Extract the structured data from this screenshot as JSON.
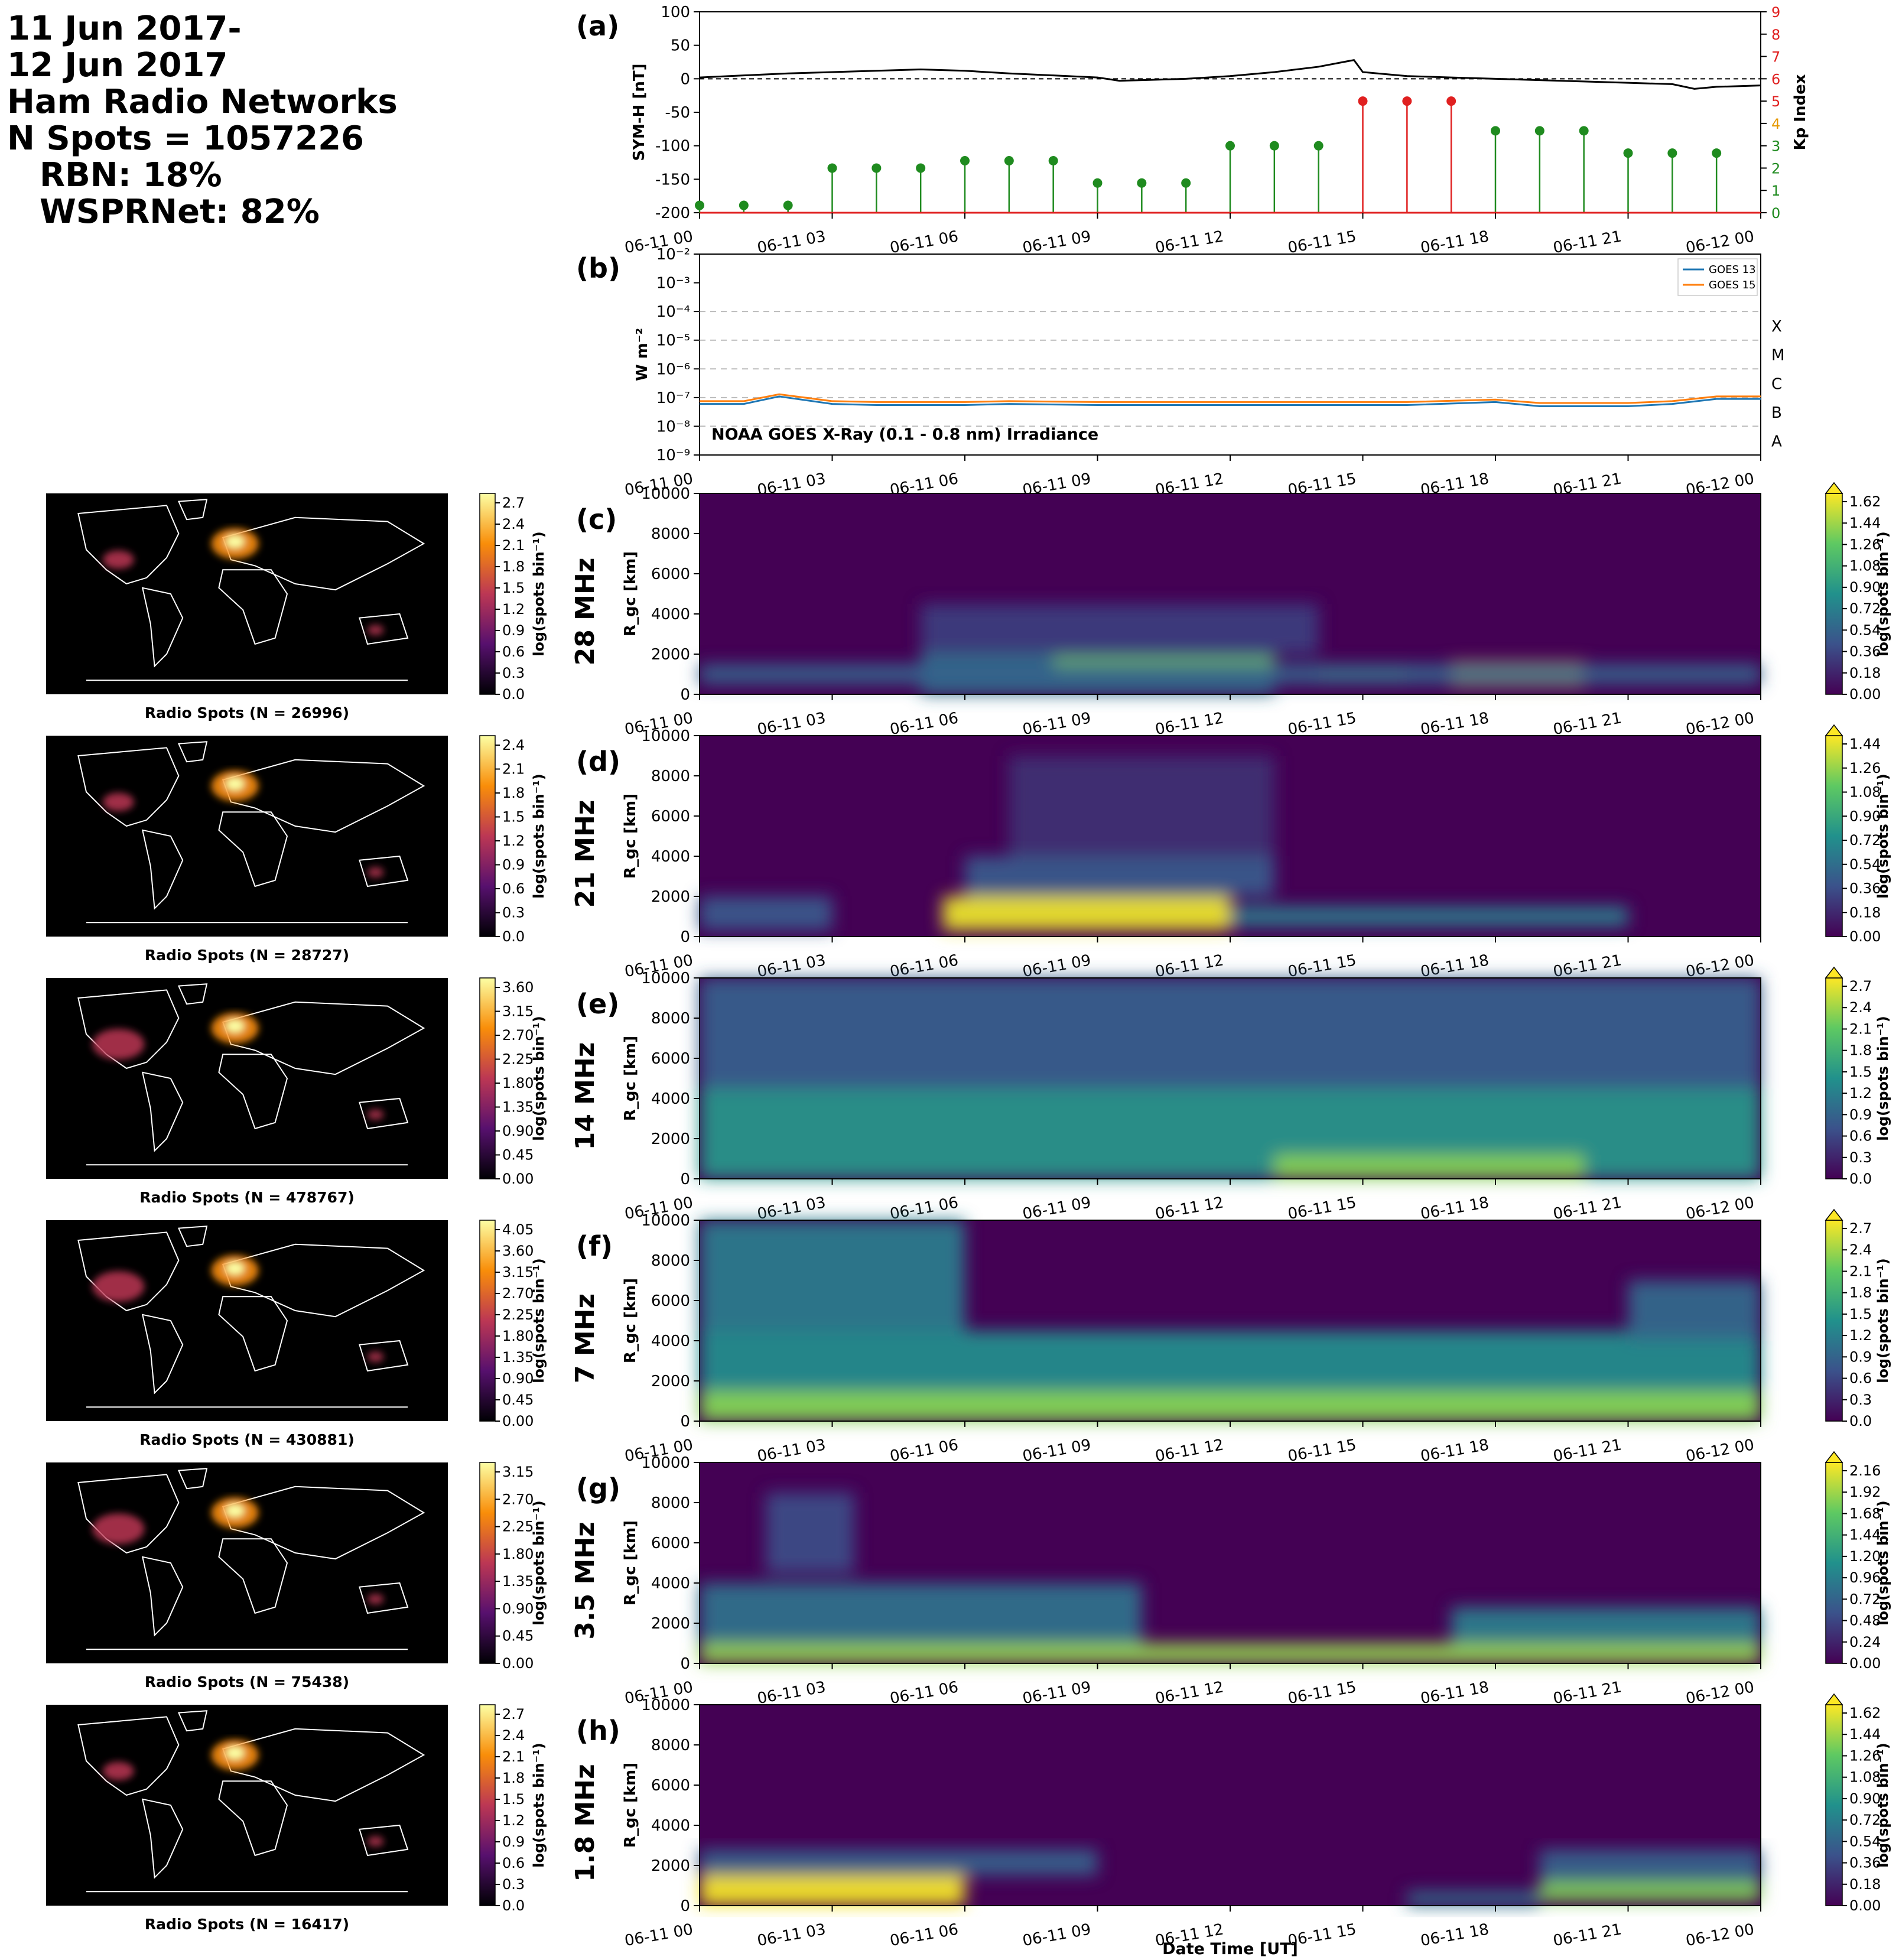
{
  "summary": {
    "date_line1": "11 Jun 2017-",
    "date_line2": "12 Jun 2017",
    "networks_label": "Ham Radio Networks",
    "n_spots": "N Spots = 1057226",
    "rbn": "RBN: 18%",
    "wsprnet": "WSPRNet: 82%"
  },
  "time_ticks": [
    "06-11 00",
    "06-11 03",
    "06-11 06",
    "06-11 09",
    "06-11 12",
    "06-11 15",
    "06-11 18",
    "06-11 21",
    "06-12 00"
  ],
  "xlabel": "Date Time [UT]",
  "colors": {
    "symh": "#000000",
    "kp_green": "#1f8b1f",
    "kp_red": "#e02020",
    "goes13": "#1f77b4",
    "goes15": "#ff7f0e"
  },
  "chart_data": [
    {
      "panel_label": "(a)",
      "type": "line",
      "ylabel": "SYM-H [nT]",
      "ylim": [
        -200,
        100
      ],
      "yticks": [
        "100",
        "50",
        "0",
        "-50",
        "-100",
        "-150",
        "-200"
      ],
      "symh_series": {
        "x_hours": [
          0,
          1,
          2,
          3,
          4,
          5,
          6,
          7,
          8,
          9,
          9.5,
          10,
          11,
          12,
          13,
          14,
          14.8,
          15,
          16,
          17,
          18,
          19,
          20,
          21,
          22,
          22.5,
          23,
          24
        ],
        "values": [
          2,
          5,
          8,
          10,
          12,
          14,
          12,
          8,
          5,
          2,
          -3,
          -2,
          0,
          4,
          10,
          18,
          28,
          10,
          4,
          2,
          0,
          -2,
          -4,
          -6,
          -8,
          -15,
          -12,
          -10
        ]
      },
      "kp": {
        "ylabel": "Kp Index",
        "ylim": [
          0,
          9
        ],
        "yticks": [
          "0",
          "1",
          "2",
          "3",
          "4",
          "5",
          "6",
          "7",
          "8",
          "9"
        ],
        "x_hours": [
          0,
          1,
          2,
          3,
          4,
          5,
          6,
          7,
          8,
          9,
          10,
          11,
          12,
          13,
          14,
          15,
          16,
          17,
          18,
          19,
          20,
          21,
          22,
          23
        ],
        "values": [
          0.33,
          0.33,
          0.33,
          2,
          2,
          2,
          2.33,
          2.33,
          2.33,
          1.33,
          1.33,
          1.33,
          3,
          3,
          3,
          5,
          5,
          5,
          3.67,
          3.67,
          3.67,
          2.67,
          2.67,
          2.67
        ]
      }
    },
    {
      "panel_label": "(b)",
      "type": "line",
      "ylabel": "W m⁻²",
      "yscale": "log",
      "ylim": [
        1e-09,
        0.01
      ],
      "yticks": [
        "10⁻²",
        "10⁻³",
        "10⁻⁴",
        "10⁻⁵",
        "10⁻⁶",
        "10⁻⁷",
        "10⁻⁸",
        "10⁻⁹"
      ],
      "flare_classes": [
        "X",
        "M",
        "C",
        "B",
        "A"
      ],
      "annotation": "NOAA GOES X-Ray (0.1 - 0.8 nm) Irradiance",
      "legend_location": "top-right",
      "series": [
        {
          "name": "GOES 13",
          "x_hours": [
            0,
            1,
            1.8,
            3,
            4,
            6,
            7,
            9,
            12,
            14,
            16,
            18,
            19,
            21,
            22,
            23,
            24
          ],
          "values": [
            6e-08,
            6e-08,
            1.1e-07,
            6e-08,
            5.5e-08,
            5.5e-08,
            6e-08,
            5.5e-08,
            5.5e-08,
            5.5e-08,
            5.5e-08,
            7e-08,
            5e-08,
            5e-08,
            6e-08,
            9e-08,
            9e-08
          ]
        },
        {
          "name": "GOES 15",
          "x_hours": [
            0,
            1,
            1.8,
            3,
            4,
            6,
            7,
            9,
            12,
            14,
            16,
            18,
            19,
            21,
            22,
            23,
            24
          ],
          "values": [
            7.5e-08,
            7.5e-08,
            1.3e-07,
            7.5e-08,
            7e-08,
            7e-08,
            7.5e-08,
            7e-08,
            7e-08,
            7e-08,
            7e-08,
            8.5e-08,
            6.5e-08,
            6.5e-08,
            7.5e-08,
            1.1e-07,
            1.1e-07
          ]
        }
      ]
    },
    {
      "panel_label": "(c)",
      "band": "28 MHz",
      "type": "heatmap",
      "ylabel": "R_gc [km]",
      "yticks": [
        "0",
        "2000",
        "4000",
        "6000",
        "8000",
        "10000"
      ],
      "colorbar_label": "log(spots bin⁻¹)",
      "colorbar_ticks": [
        "0.00",
        "0.18",
        "0.36",
        "0.54",
        "0.72",
        "0.90",
        "1.08",
        "1.26",
        "1.44",
        "1.62"
      ],
      "map_caption": "Radio Spots (N = 26996)",
      "map_cbar_ticks": [
        "0.0",
        "0.3",
        "0.6",
        "0.9",
        "1.2",
        "1.5",
        "1.8",
        "2.1",
        "2.4",
        "2.7"
      ],
      "blobs": [
        [
          5,
          13,
          0,
          2000,
          0.6
        ],
        [
          8,
          13,
          800,
          1800,
          1.3
        ],
        [
          14,
          16,
          500,
          1500,
          1.3
        ],
        [
          17,
          20,
          400,
          1600,
          1.5
        ],
        [
          5,
          14,
          2000,
          4500,
          0.3
        ],
        [
          0,
          24,
          500,
          1500,
          0.5
        ]
      ]
    },
    {
      "panel_label": "(d)",
      "band": "21 MHz",
      "type": "heatmap",
      "ylabel": "R_gc [km]",
      "yticks": [
        "0",
        "2000",
        "4000",
        "6000",
        "8000",
        "10000"
      ],
      "colorbar_label": "log(spots bin⁻¹)",
      "colorbar_ticks": [
        "0.00",
        "0.18",
        "0.36",
        "0.54",
        "0.72",
        "0.90",
        "1.08",
        "1.26",
        "1.44"
      ],
      "map_caption": "Radio Spots (N = 28727)",
      "map_cbar_ticks": [
        "0.0",
        "0.3",
        "0.6",
        "0.9",
        "1.2",
        "1.5",
        "1.8",
        "2.1",
        "2.4"
      ],
      "blobs": [
        [
          5.5,
          12,
          300,
          2000,
          1.4
        ],
        [
          12,
          21,
          500,
          1500,
          0.6
        ],
        [
          6,
          13,
          2000,
          4000,
          0.4
        ],
        [
          7,
          13,
          4000,
          9000,
          0.2
        ],
        [
          0,
          3,
          300,
          2000,
          0.4
        ]
      ]
    },
    {
      "panel_label": "(e)",
      "band": "14 MHz",
      "type": "heatmap",
      "ylabel": "R_gc [km]",
      "yticks": [
        "0",
        "2000",
        "4000",
        "6000",
        "8000",
        "10000"
      ],
      "colorbar_label": "log(spots bin⁻¹)",
      "colorbar_ticks": [
        "0.0",
        "0.3",
        "0.6",
        "0.9",
        "1.2",
        "1.5",
        "1.8",
        "2.1",
        "2.4",
        "2.7"
      ],
      "map_caption": "Radio Spots (N = 478767)",
      "map_cbar_ticks": [
        "0.00",
        "0.45",
        "0.90",
        "1.35",
        "1.80",
        "2.25",
        "2.70",
        "3.15",
        "3.60"
      ],
      "blobs": [
        [
          0,
          24,
          0,
          4500,
          1.4
        ],
        [
          13,
          20,
          0,
          1200,
          2.2
        ],
        [
          0,
          24,
          4500,
          10000,
          0.8
        ]
      ]
    },
    {
      "panel_label": "(f)",
      "band": "7 MHz",
      "type": "heatmap",
      "ylabel": "R_gc [km]",
      "yticks": [
        "0",
        "2000",
        "4000",
        "6000",
        "8000",
        "10000"
      ],
      "colorbar_label": "log(spots bin⁻¹)",
      "colorbar_ticks": [
        "0.0",
        "0.3",
        "0.6",
        "0.9",
        "1.2",
        "1.5",
        "1.8",
        "2.1",
        "2.4",
        "2.7"
      ],
      "map_caption": "Radio Spots (N = 430881)",
      "map_cbar_ticks": [
        "0.00",
        "0.45",
        "0.90",
        "1.35",
        "1.80",
        "2.25",
        "2.70",
        "3.15",
        "3.60",
        "4.05"
      ],
      "blobs": [
        [
          0,
          24,
          0,
          4500,
          1.3
        ],
        [
          0,
          24,
          0,
          1500,
          2.2
        ],
        [
          0,
          6,
          4500,
          10000,
          1.1
        ],
        [
          21,
          24,
          4000,
          7000,
          0.9
        ]
      ]
    },
    {
      "panel_label": "(g)",
      "band": "3.5 MHz",
      "type": "heatmap",
      "ylabel": "R_gc [km]",
      "yticks": [
        "0",
        "2000",
        "4000",
        "6000",
        "8000",
        "10000"
      ],
      "colorbar_label": "log(spots bin⁻¹)",
      "colorbar_ticks": [
        "0.00",
        "0.24",
        "0.48",
        "0.72",
        "0.96",
        "1.20",
        "1.44",
        "1.68",
        "1.92",
        "2.16"
      ],
      "map_caption": "Radio Spots (N = 75438)",
      "map_cbar_ticks": [
        "0.00",
        "0.45",
        "0.90",
        "1.35",
        "1.80",
        "2.25",
        "2.70",
        "3.15"
      ],
      "blobs": [
        [
          0,
          24,
          0,
          1000,
          1.8
        ],
        [
          0,
          10,
          1000,
          4000,
          0.8
        ],
        [
          17,
          24,
          1000,
          2800,
          0.9
        ],
        [
          1.5,
          3.5,
          4500,
          8500,
          0.5
        ]
      ]
    },
    {
      "panel_label": "(h)",
      "band": "1.8 MHz",
      "type": "heatmap",
      "ylabel": "R_gc [km]",
      "yticks": [
        "0",
        "2000",
        "4000",
        "6000",
        "8000",
        "10000"
      ],
      "colorbar_label": "log(spots bin⁻¹)",
      "colorbar_ticks": [
        "0.00",
        "0.18",
        "0.36",
        "0.54",
        "0.72",
        "0.90",
        "1.08",
        "1.26",
        "1.44",
        "1.62"
      ],
      "map_caption": "Radio Spots (N = 16417)",
      "map_cbar_ticks": [
        "0.0",
        "0.3",
        "0.6",
        "0.9",
        "1.2",
        "1.5",
        "1.8",
        "2.1",
        "2.4",
        "2.7"
      ],
      "blobs": [
        [
          0,
          6,
          0,
          1500,
          1.6
        ],
        [
          0,
          9,
          1500,
          2800,
          0.5
        ],
        [
          19,
          24,
          200,
          1200,
          1.3
        ],
        [
          19,
          24,
          1200,
          2800,
          0.5
        ],
        [
          16,
          19,
          0,
          700,
          0.6
        ]
      ]
    }
  ]
}
